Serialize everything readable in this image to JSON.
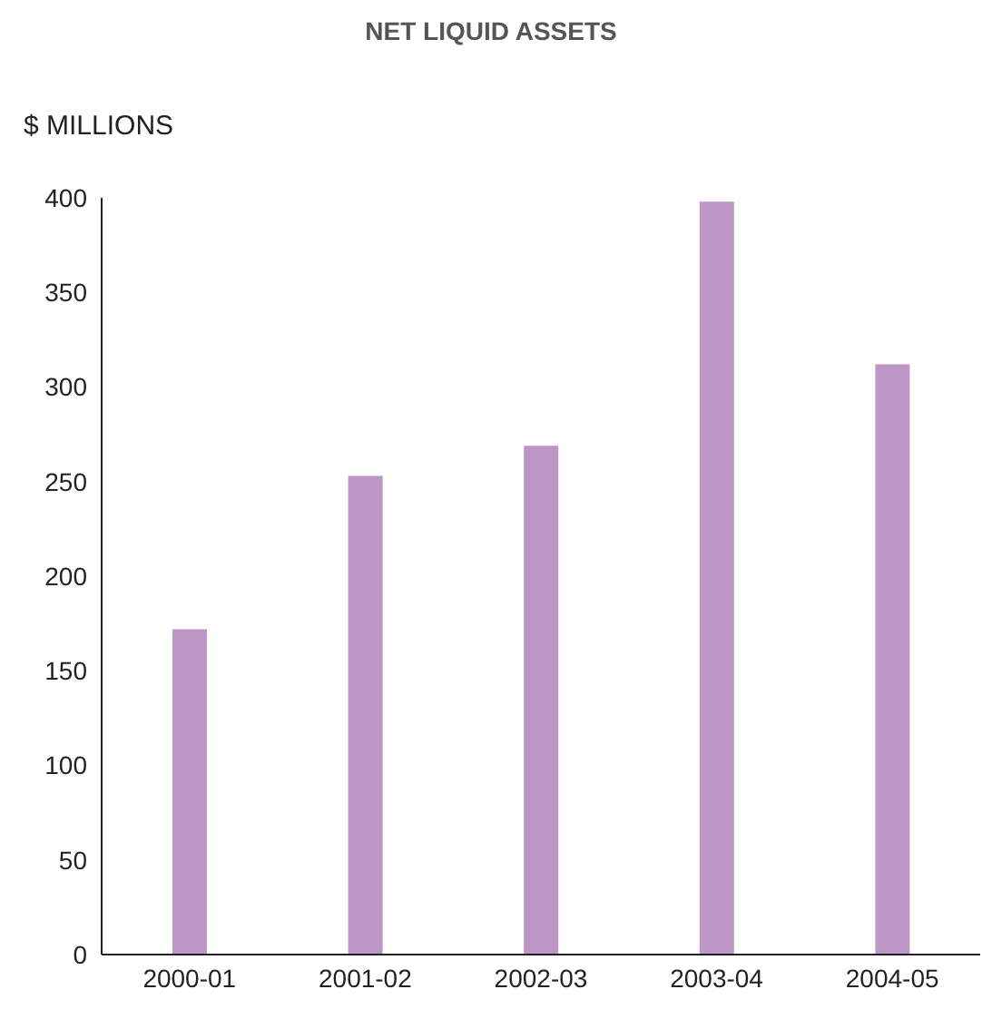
{
  "chart_data": {
    "type": "bar",
    "title": "NET LIQUID ASSETS",
    "ylabel": "$ MILLIONS",
    "categories": [
      "2000-01",
      "2001-02",
      "2002-03",
      "2003-04",
      "2004-05"
    ],
    "values": [
      172,
      253,
      269,
      398,
      312
    ],
    "color": "#bc96c4",
    "ylim": [
      0,
      400
    ],
    "yticks": [
      0,
      50,
      100,
      150,
      200,
      250,
      300,
      350,
      400
    ],
    "grid": false,
    "legend": false
  }
}
